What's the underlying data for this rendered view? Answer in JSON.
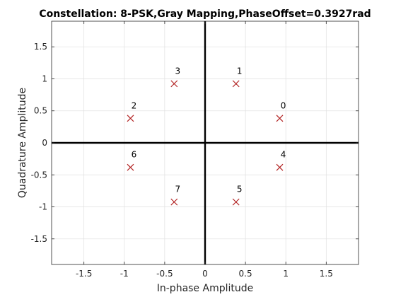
{
  "chart_data": {
    "type": "scatter",
    "title": "Constellation: 8-PSK,Gray Mapping,PhaseOffset=0.3927rad",
    "xlabel": "In-phase Amplitude",
    "ylabel": "Quadrature Amplitude",
    "xlim": [
      -1.9,
      1.9
    ],
    "ylim": [
      -1.9,
      1.9
    ],
    "xticks": [
      -1.5,
      -1,
      -0.5,
      0,
      0.5,
      1,
      1.5
    ],
    "yticks": [
      -1.5,
      -1,
      -0.5,
      0,
      0.5,
      1,
      1.5
    ],
    "xtick_labels": [
      "-1.5",
      "-1",
      "-0.5",
      "0",
      "0.5",
      "1",
      "1.5"
    ],
    "ytick_labels": [
      "-1.5",
      "-1",
      "-0.5",
      "0",
      "0.5",
      "1",
      "1.5"
    ],
    "grid": true,
    "marker": "x",
    "marker_color": "#b22222",
    "points": [
      {
        "label": "0",
        "x": 0.9239,
        "y": 0.3827
      },
      {
        "label": "1",
        "x": 0.3827,
        "y": 0.9239
      },
      {
        "label": "2",
        "x": -0.9239,
        "y": 0.3827
      },
      {
        "label": "3",
        "x": -0.3827,
        "y": 0.9239
      },
      {
        "label": "4",
        "x": 0.9239,
        "y": -0.3827
      },
      {
        "label": "5",
        "x": 0.3827,
        "y": -0.9239
      },
      {
        "label": "6",
        "x": -0.9239,
        "y": -0.3827
      },
      {
        "label": "7",
        "x": -0.3827,
        "y": -0.9239
      }
    ]
  }
}
